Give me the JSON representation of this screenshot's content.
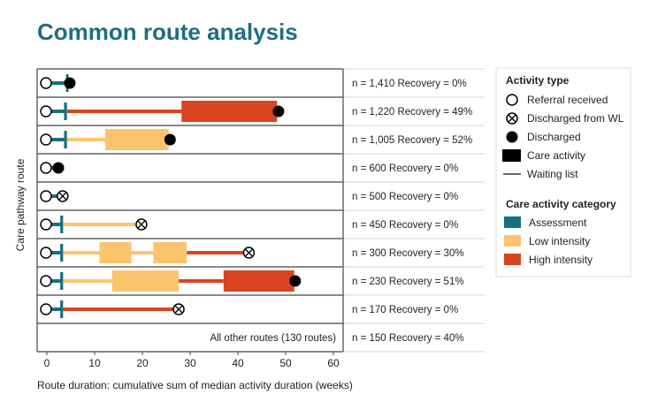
{
  "title": "Common route analysis",
  "colors": {
    "title": "#1e6f80",
    "assessment": "#17707f",
    "low_intensity": "#fcc46c",
    "high_intensity": "#d9431f",
    "marker_dark": "#000000"
  },
  "chart_data": {
    "type": "timeline",
    "title": "Common route analysis",
    "xlabel": "Route duration: cumulative sum of median activity duration (weeks)",
    "ylabel": "Care pathway route",
    "xlim": [
      -2,
      63
    ],
    "xticks": [
      0,
      10,
      20,
      30,
      40,
      50,
      60
    ],
    "grid": "horizontal row separators",
    "legend_position": "right",
    "routes": [
      {
        "label": "n = 1,410  Recovery = 0%",
        "end": 4.8,
        "end_marker": "Discharged",
        "segments": [
          {
            "start": 0,
            "end": 4.2,
            "kind": "Waiting list",
            "category": "Assessment"
          },
          {
            "start": 4.0,
            "end": 4.5,
            "kind": "Care activity",
            "category": "Assessment"
          }
        ]
      },
      {
        "label": "n = 1,220  Recovery = 49%",
        "end": 48.5,
        "end_marker": "Discharged",
        "segments": [
          {
            "start": 0,
            "end": 4.0,
            "kind": "Waiting list",
            "category": "Assessment"
          },
          {
            "start": 3.6,
            "end": 4.2,
            "kind": "Care activity",
            "category": "Assessment"
          },
          {
            "start": 4.2,
            "end": 28.2,
            "kind": "Waiting list",
            "category": "High intensity"
          },
          {
            "start": 28.2,
            "end": 48.2,
            "kind": "Care activity",
            "category": "High intensity"
          }
        ]
      },
      {
        "label": "n = 1,005  Recovery = 52%",
        "end": 25.8,
        "end_marker": "Discharged",
        "segments": [
          {
            "start": 0,
            "end": 3.6,
            "kind": "Waiting list",
            "category": "Assessment"
          },
          {
            "start": 3.6,
            "end": 4.2,
            "kind": "Care activity",
            "category": "Assessment"
          },
          {
            "start": 4.2,
            "end": 12.2,
            "kind": "Waiting list",
            "category": "Low intensity"
          },
          {
            "start": 12.2,
            "end": 25.5,
            "kind": "Care activity",
            "category": "Low intensity"
          }
        ]
      },
      {
        "label": "n = 600  Recovery = 0%",
        "end": 2.4,
        "end_marker": "Discharged",
        "segments": [
          {
            "start": 0,
            "end": 2.4,
            "kind": "Waiting list",
            "category": "Assessment"
          }
        ]
      },
      {
        "label": "n = 500  Recovery = 0%",
        "end": 3.3,
        "end_marker": "Discharged from WL",
        "segments": [
          {
            "start": 0,
            "end": 3.3,
            "kind": "Waiting list",
            "category": "Assessment"
          }
        ]
      },
      {
        "label": "n = 450  Recovery = 0%",
        "end": 19.8,
        "end_marker": "Discharged from WL",
        "segments": [
          {
            "start": 0,
            "end": 3.0,
            "kind": "Waiting list",
            "category": "Assessment"
          },
          {
            "start": 2.8,
            "end": 3.4,
            "kind": "Care activity",
            "category": "Assessment"
          },
          {
            "start": 3.4,
            "end": 19.8,
            "kind": "Waiting list",
            "category": "Low intensity"
          }
        ]
      },
      {
        "label": "n = 300  Recovery = 30%",
        "end": 42.3,
        "end_marker": "Discharged from WL",
        "segments": [
          {
            "start": 0,
            "end": 3.0,
            "kind": "Waiting list",
            "category": "Assessment"
          },
          {
            "start": 2.8,
            "end": 3.4,
            "kind": "Care activity",
            "category": "Assessment"
          },
          {
            "start": 3.4,
            "end": 11.0,
            "kind": "Waiting list",
            "category": "Low intensity"
          },
          {
            "start": 11.0,
            "end": 17.7,
            "kind": "Care activity",
            "category": "Low intensity"
          },
          {
            "start": 17.7,
            "end": 22.3,
            "kind": "Waiting list",
            "category": "Low intensity"
          },
          {
            "start": 22.3,
            "end": 29.3,
            "kind": "Care activity",
            "category": "Low intensity"
          },
          {
            "start": 29.3,
            "end": 42.3,
            "kind": "Waiting list",
            "category": "High intensity"
          }
        ]
      },
      {
        "label": "n = 230  Recovery = 51%",
        "end": 52.0,
        "end_marker": "Discharged",
        "segments": [
          {
            "start": 0,
            "end": 3.0,
            "kind": "Waiting list",
            "category": "Assessment"
          },
          {
            "start": 2.8,
            "end": 3.4,
            "kind": "Care activity",
            "category": "Assessment"
          },
          {
            "start": 3.4,
            "end": 13.7,
            "kind": "Waiting list",
            "category": "Low intensity"
          },
          {
            "start": 13.7,
            "end": 27.6,
            "kind": "Care activity",
            "category": "Low intensity"
          },
          {
            "start": 27.6,
            "end": 37.0,
            "kind": "Waiting list",
            "category": "High intensity"
          },
          {
            "start": 37.0,
            "end": 51.8,
            "kind": "Care activity",
            "category": "High intensity"
          }
        ]
      },
      {
        "label": "n = 170  Recovery = 0%",
        "end": 27.6,
        "end_marker": "Discharged from WL",
        "segments": [
          {
            "start": 0,
            "end": 3.0,
            "kind": "Waiting list",
            "category": "Assessment"
          },
          {
            "start": 2.8,
            "end": 3.4,
            "kind": "Care activity",
            "category": "Assessment"
          },
          {
            "start": 3.4,
            "end": 27.6,
            "kind": "Waiting list",
            "category": "High intensity"
          }
        ]
      },
      {
        "label": "n = 150  Recovery = 40%",
        "other_label": "All other routes (130 routes)",
        "segments": []
      }
    ],
    "legend": {
      "activity_type_title": "Activity type",
      "activity_types": [
        "Referral received",
        "Discharged from WL",
        "Discharged",
        "Care activity",
        "Waiting list"
      ],
      "category_title": "Care activity category",
      "categories": [
        "Assessment",
        "Low intensity",
        "High intensity"
      ]
    }
  }
}
